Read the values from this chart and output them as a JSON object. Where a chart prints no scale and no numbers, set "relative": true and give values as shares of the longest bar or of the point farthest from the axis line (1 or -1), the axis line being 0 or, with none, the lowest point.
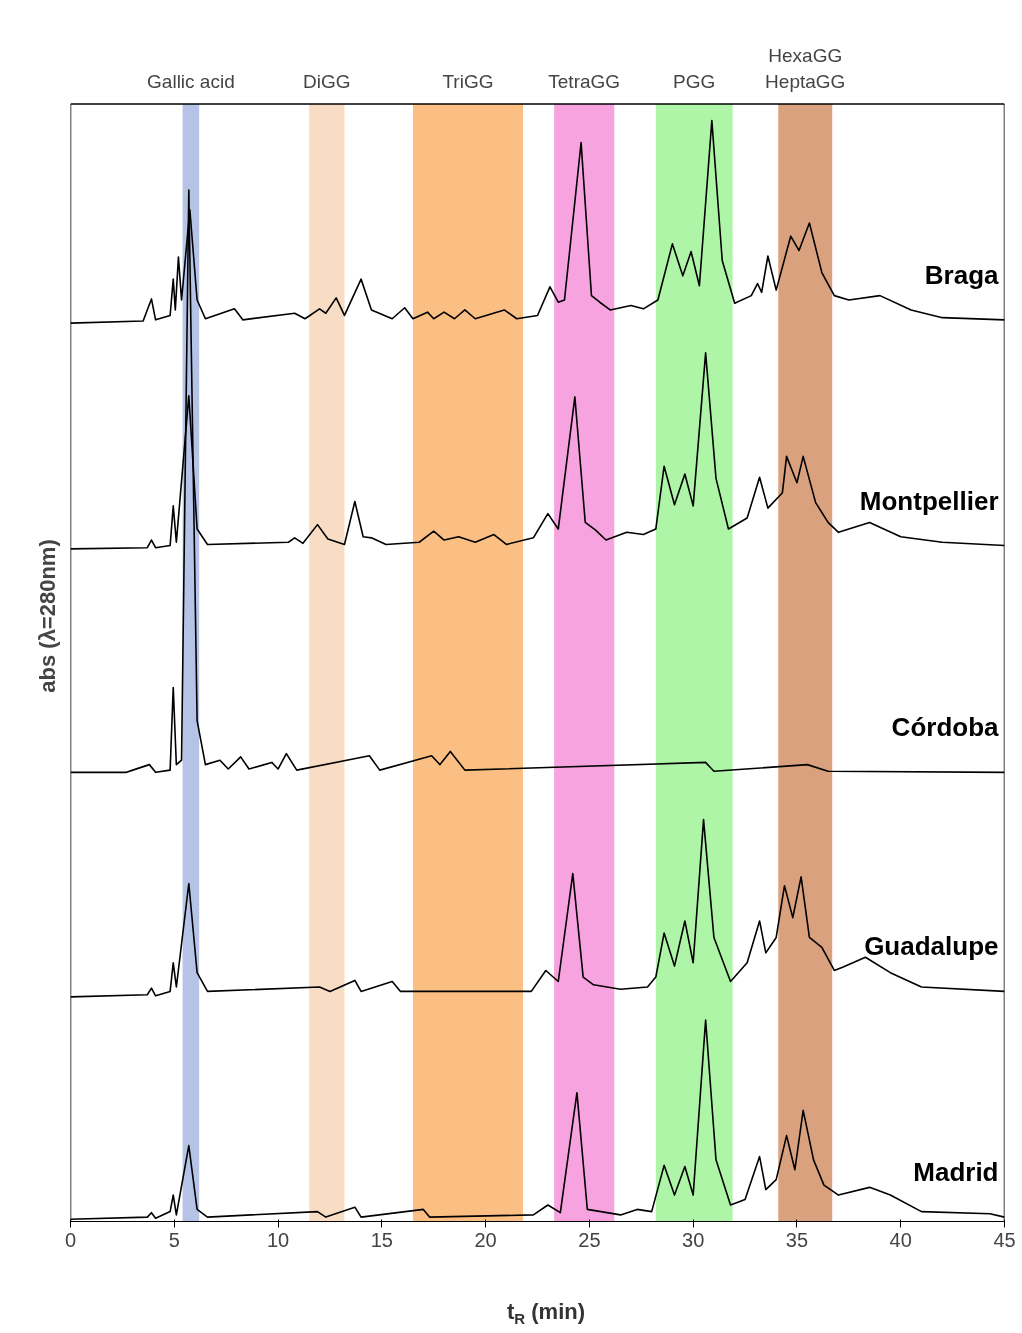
{
  "chart_data": {
    "type": "line",
    "relative": true,
    "xlabel": "t$_{R}$ (min)",
    "ylabel": "abs (λ=280nm)",
    "xlim": [
      0,
      45
    ],
    "xticks": [
      0,
      5,
      10,
      15,
      20,
      25,
      30,
      35,
      40,
      45
    ],
    "grid": false,
    "bands": [
      {
        "axis": "x",
        "from": 5.4,
        "to": 6.2,
        "label": "Gallic acid",
        "color": "#b4c3e6"
      },
      {
        "axis": "x",
        "from": 11.5,
        "to": 13.2,
        "label": "DiGG",
        "color": "#f8dcc4"
      },
      {
        "axis": "x",
        "from": 16.5,
        "to": 21.8,
        "label": "TriGG",
        "color": "#fbbf84"
      },
      {
        "axis": "x",
        "from": 23.3,
        "to": 26.2,
        "label": "TetraGG",
        "color": "#f7a3e0"
      },
      {
        "axis": "x",
        "from": 28.2,
        "to": 31.9,
        "label": "PGG",
        "color": "#aef5a8"
      },
      {
        "axis": "x",
        "from": 34.1,
        "to": 36.7,
        "label": "HexaGG\nHeptaGG",
        "color": "#d9a17e"
      }
    ],
    "series": [
      {
        "name": "Braga",
        "color": "#000000",
        "x": [
          0,
          3.5,
          3.9,
          4.1,
          4.8,
          4.95,
          5.05,
          5.2,
          5.35,
          5.75,
          6.1,
          6.5,
          7.9,
          8.3,
          10.8,
          11.3,
          12.0,
          12.3,
          12.8,
          13.2,
          14.0,
          14.5,
          15.5,
          16.1,
          16.5,
          17.2,
          17.5,
          18.0,
          18.5,
          19.0,
          19.5,
          20.9,
          21.5,
          22.5,
          23.1,
          23.5,
          23.8,
          24.6,
          25.1,
          25.5,
          26.0,
          27.0,
          27.6,
          28.3,
          29.0,
          29.5,
          29.9,
          30.3,
          30.9,
          31.4,
          32.0,
          32.8,
          33.1,
          33.3,
          33.6,
          34.0,
          34.7,
          35.1,
          35.6,
          36.2,
          36.8,
          37.5,
          39.0,
          40.5,
          42,
          45
        ],
        "values": [
          0.816,
          0.818,
          0.838,
          0.819,
          0.823,
          0.856,
          0.828,
          0.876,
          0.837,
          0.919,
          0.837,
          0.82,
          0.829,
          0.819,
          0.825,
          0.82,
          0.829,
          0.825,
          0.839,
          0.823,
          0.856,
          0.828,
          0.82,
          0.83,
          0.82,
          0.826,
          0.82,
          0.826,
          0.82,
          0.828,
          0.82,
          0.828,
          0.82,
          0.823,
          0.849,
          0.835,
          0.837,
          0.98,
          0.841,
          0.835,
          0.828,
          0.832,
          0.829,
          0.837,
          0.888,
          0.859,
          0.881,
          0.85,
          1.0,
          0.873,
          0.834,
          0.841,
          0.852,
          0.844,
          0.877,
          0.846,
          0.895,
          0.882,
          0.907,
          0.862,
          0.841,
          0.837,
          0.841,
          0.828,
          0.821,
          0.819
        ]
      },
      {
        "name": "Montpellier",
        "color": "#000000",
        "x": [
          0,
          3.7,
          3.9,
          4.1,
          4.8,
          4.95,
          5.1,
          5.7,
          6.1,
          6.6,
          10.5,
          10.8,
          11.2,
          11.9,
          12.4,
          13.2,
          13.7,
          14.1,
          14.5,
          15.2,
          16.8,
          17.5,
          18.0,
          18.7,
          19.5,
          20.4,
          21.0,
          22.3,
          23.0,
          23.5,
          24.3,
          24.8,
          25.3,
          25.8,
          26.8,
          27.6,
          28.2,
          28.6,
          29.1,
          29.6,
          30.0,
          30.6,
          31.1,
          31.7,
          32.6,
          33.2,
          33.6,
          34.3,
          34.5,
          35.0,
          35.3,
          35.9,
          36.5,
          37.0,
          38.5,
          40.0,
          42,
          45
        ],
        "values": [
          0.611,
          0.612,
          0.619,
          0.612,
          0.614,
          0.65,
          0.617,
          0.75,
          0.629,
          0.615,
          0.617,
          0.621,
          0.616,
          0.633,
          0.62,
          0.615,
          0.654,
          0.622,
          0.621,
          0.615,
          0.617,
          0.627,
          0.619,
          0.622,
          0.617,
          0.624,
          0.615,
          0.621,
          0.643,
          0.629,
          0.749,
          0.635,
          0.628,
          0.619,
          0.626,
          0.624,
          0.629,
          0.686,
          0.651,
          0.679,
          0.65,
          0.789,
          0.675,
          0.629,
          0.639,
          0.676,
          0.648,
          0.662,
          0.695,
          0.671,
          0.695,
          0.653,
          0.635,
          0.626,
          0.635,
          0.622,
          0.617,
          0.614
        ]
      },
      {
        "name": "Córdoba",
        "color": "#000000",
        "x": [
          0,
          2.7,
          3.0,
          3.8,
          4.1,
          4.8,
          4.95,
          5.1,
          5.35,
          5.7,
          6.1,
          6.5,
          7.2,
          7.6,
          8.2,
          8.6,
          9.7,
          10.0,
          10.4,
          10.9,
          14.4,
          14.9,
          17.4,
          17.8,
          18.3,
          19.0,
          30.6,
          31.0,
          35.5,
          36.5,
          45
        ],
        "values": [
          0.408,
          0.408,
          0.41,
          0.415,
          0.408,
          0.41,
          0.485,
          0.415,
          0.419,
          0.937,
          0.455,
          0.415,
          0.419,
          0.411,
          0.422,
          0.411,
          0.417,
          0.411,
          0.425,
          0.41,
          0.423,
          0.41,
          0.423,
          0.415,
          0.427,
          0.41,
          0.417,
          0.409,
          0.415,
          0.409,
          0.408
        ]
      },
      {
        "name": "Guadalupe",
        "color": "#000000",
        "x": [
          0,
          3.7,
          3.9,
          4.1,
          4.8,
          4.95,
          5.1,
          5.7,
          6.1,
          6.6,
          12.0,
          12.5,
          13.7,
          14.0,
          15.5,
          15.9,
          22.2,
          22.9,
          23.5,
          24.2,
          24.7,
          25.2,
          26.5,
          27.8,
          28.2,
          28.6,
          29.1,
          29.6,
          30.0,
          30.5,
          31.0,
          31.8,
          32.6,
          33.2,
          33.5,
          34.0,
          34.4,
          34.8,
          35.2,
          35.6,
          36.2,
          36.8,
          37.2,
          38.3,
          39.5,
          41,
          45
        ],
        "values": [
          0.204,
          0.206,
          0.212,
          0.205,
          0.209,
          0.235,
          0.213,
          0.307,
          0.226,
          0.209,
          0.213,
          0.209,
          0.219,
          0.209,
          0.218,
          0.209,
          0.209,
          0.228,
          0.218,
          0.316,
          0.222,
          0.215,
          0.211,
          0.213,
          0.222,
          0.262,
          0.232,
          0.273,
          0.235,
          0.365,
          0.258,
          0.218,
          0.235,
          0.273,
          0.244,
          0.258,
          0.305,
          0.276,
          0.313,
          0.258,
          0.249,
          0.228,
          0.231,
          0.24,
          0.226,
          0.213,
          0.209
        ]
      },
      {
        "name": "Madrid",
        "color": "#000000",
        "x": [
          0,
          3.7,
          3.9,
          4.1,
          4.8,
          4.95,
          5.1,
          5.7,
          6.1,
          6.6,
          11.9,
          12.3,
          13.7,
          14.0,
          17.0,
          17.3,
          22.3,
          23.0,
          23.6,
          24.4,
          24.9,
          26.5,
          27.3,
          28.0,
          28.6,
          29.1,
          29.6,
          30.0,
          30.6,
          31.1,
          31.8,
          32.5,
          33.2,
          33.5,
          34.0,
          34.5,
          34.9,
          35.3,
          35.8,
          36.3,
          37.0,
          38.5,
          39.5,
          41,
          44.3,
          45
        ],
        "values": [
          0.002,
          0.004,
          0.008,
          0.003,
          0.009,
          0.024,
          0.006,
          0.069,
          0.011,
          0.004,
          0.009,
          0.004,
          0.013,
          0.004,
          0.011,
          0.004,
          0.006,
          0.015,
          0.008,
          0.117,
          0.011,
          0.006,
          0.011,
          0.009,
          0.051,
          0.024,
          0.05,
          0.024,
          0.183,
          0.056,
          0.015,
          0.02,
          0.059,
          0.029,
          0.038,
          0.078,
          0.047,
          0.101,
          0.056,
          0.033,
          0.024,
          0.031,
          0.024,
          0.009,
          0.007,
          0.004
        ]
      }
    ]
  }
}
